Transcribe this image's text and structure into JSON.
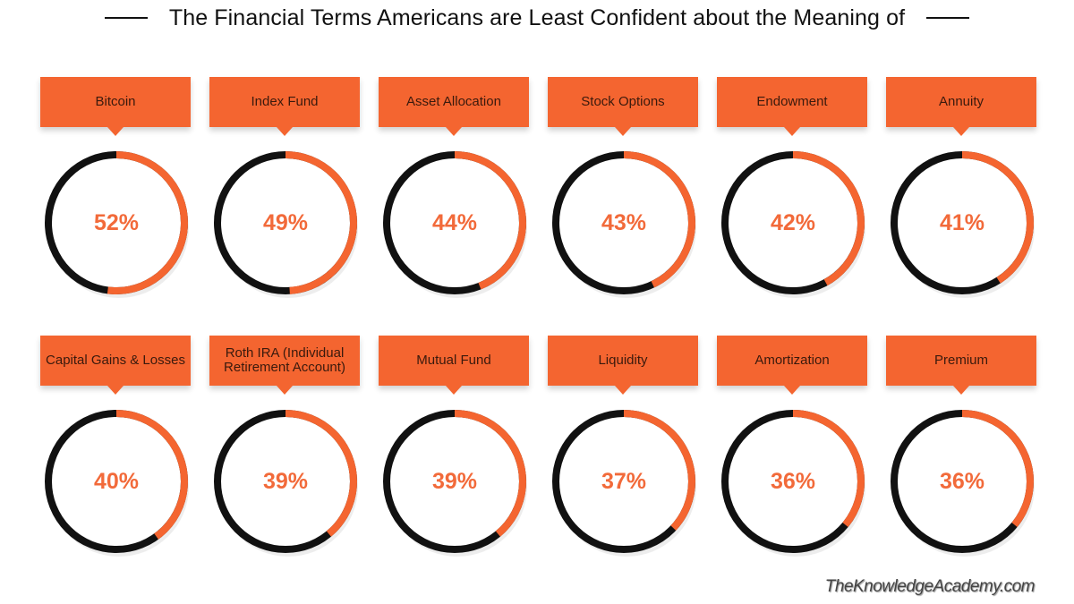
{
  "title": "The Financial Terms Americans are Least Confident about the Meaning of",
  "watermark": "TheKnowledgeAcademy.com",
  "colors": {
    "accent": "#f46530",
    "ring_dark": "#111111",
    "percent_text": "#f26a3a"
  },
  "chart_data": {
    "type": "pie",
    "variant": "donut-grid",
    "title": "The Financial Terms Americans are Least Confident about the Meaning of",
    "unit": "%",
    "categories": [
      "Bitcoin",
      "Index Fund",
      "Asset Allocation",
      "Stock Options",
      "Endowment",
      "Annuity",
      "Capital Gains & Losses",
      "Roth IRA (Individual Retirement Account)",
      "Mutual Fund",
      "Liquidity",
      "Amortization",
      "Premium"
    ],
    "values": [
      52,
      49,
      44,
      43,
      42,
      41,
      40,
      39,
      39,
      37,
      36,
      36
    ],
    "labels": [
      "52%",
      "49%",
      "44%",
      "43%",
      "42%",
      "41%",
      "40%",
      "39%",
      "39%",
      "37%",
      "36%",
      "36%"
    ],
    "layout": "2 rows x 6 columns"
  }
}
